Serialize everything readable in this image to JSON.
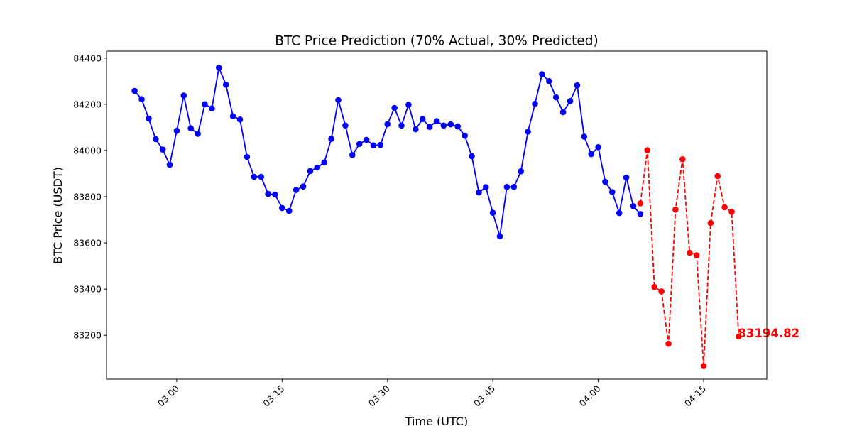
{
  "chart_data": {
    "type": "line",
    "title": "BTC Price Prediction (70% Actual, 30% Predicted)",
    "xlabel": "Time (UTC)",
    "ylabel": "BTC Price (USDT)",
    "x_unit": "minutes",
    "xlim": [
      "02:50",
      "04:24"
    ],
    "ylim": [
      83010,
      84430
    ],
    "x_ticks": [
      "03:00",
      "03:15",
      "03:30",
      "03:45",
      "04:00",
      "04:15"
    ],
    "y_ticks": [
      83200,
      83400,
      83600,
      83800,
      84000,
      84200,
      84400
    ],
    "grid": false,
    "colors": {
      "actual": "#0000ff",
      "predicted": "#ff0000"
    },
    "series": [
      {
        "role": "actual",
        "style": "solid",
        "start": "02:54",
        "step_minutes": 1,
        "values": [
          84258,
          84222,
          84138,
          84049,
          84004,
          83938,
          84085,
          84238,
          84096,
          84072,
          84200,
          84182,
          84358,
          84285,
          84148,
          84134,
          83972,
          83886,
          83886,
          83812,
          83809,
          83751,
          83738,
          83829,
          83844,
          83911,
          83926,
          83948,
          84050,
          84218,
          84108,
          83980,
          84028,
          84046,
          84022,
          84024,
          84114,
          84184,
          84108,
          84198,
          84092,
          84136,
          84102,
          84127,
          84108,
          84113,
          84104,
          84064,
          83975,
          83818,
          83841,
          83730,
          83628,
          83842,
          83842,
          83910,
          84081,
          84202,
          84330,
          84300,
          84230,
          84166,
          84214,
          84282,
          84060,
          83984,
          84014,
          83864,
          83820,
          83729,
          83883,
          83759,
          83725
        ]
      },
      {
        "role": "predicted",
        "style": "dashed",
        "start": "04:06",
        "step_minutes": 1,
        "values": [
          83771,
          84001,
          83409,
          83390,
          83163,
          83744,
          83962,
          83557,
          83546,
          83067,
          83686,
          83889,
          83754,
          83734,
          83195
        ]
      }
    ],
    "annotations": [
      {
        "text": "83194.82",
        "x": "04:20",
        "y": 83194.82,
        "color": "#ff0000"
      }
    ]
  }
}
